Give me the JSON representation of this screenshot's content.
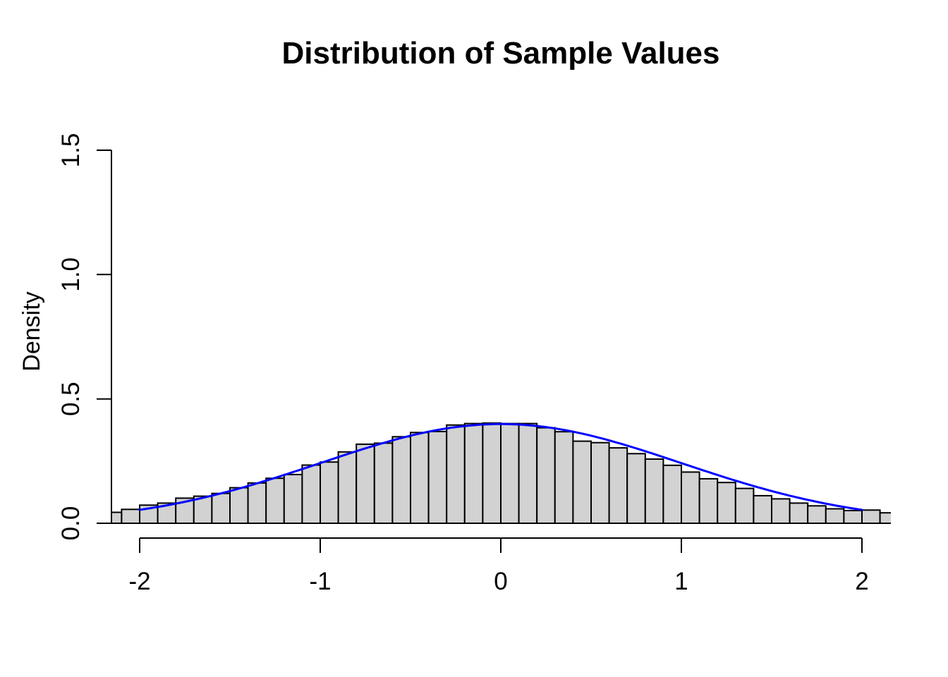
{
  "chart_data": {
    "type": "bar",
    "subtype": "histogram-with-density-curve",
    "title": "Distribution of Sample Values",
    "xlabel": "",
    "ylabel": "Density",
    "x_ticks": {
      "values": [
        -2,
        -1,
        0,
        1,
        2
      ],
      "labels": [
        "-2",
        "-1",
        "0",
        "1",
        "2"
      ]
    },
    "y_ticks": {
      "values": [
        0,
        0.5,
        1,
        1.5
      ],
      "labels": [
        "0.0",
        "0.5",
        "1.0",
        "1.5"
      ]
    },
    "xlim": [
      -2.16,
      2.16
    ],
    "ylim": [
      0,
      1.5
    ],
    "grid": false,
    "legend": null,
    "bins": {
      "start": -2.2,
      "width": 0.1,
      "densities": [
        0.044,
        0.056,
        0.073,
        0.081,
        0.101,
        0.109,
        0.12,
        0.143,
        0.162,
        0.181,
        0.196,
        0.234,
        0.246,
        0.287,
        0.318,
        0.322,
        0.348,
        0.365,
        0.369,
        0.395,
        0.401,
        0.403,
        0.401,
        0.401,
        0.384,
        0.368,
        0.33,
        0.324,
        0.303,
        0.28,
        0.258,
        0.233,
        0.206,
        0.179,
        0.164,
        0.14,
        0.111,
        0.098,
        0.081,
        0.07,
        0.058,
        0.051,
        0.053,
        0.042
      ]
    },
    "curve": {
      "name": "normal-density",
      "mean": 0,
      "sd": 1,
      "peak_density": 0.399,
      "from": -2,
      "to": 2,
      "color": "#0000ff"
    },
    "colors": {
      "bar_fill": "#d2d2d2",
      "bar_border": "#000000",
      "axis": "#000000",
      "text": "#000000",
      "background": "#ffffff"
    }
  }
}
